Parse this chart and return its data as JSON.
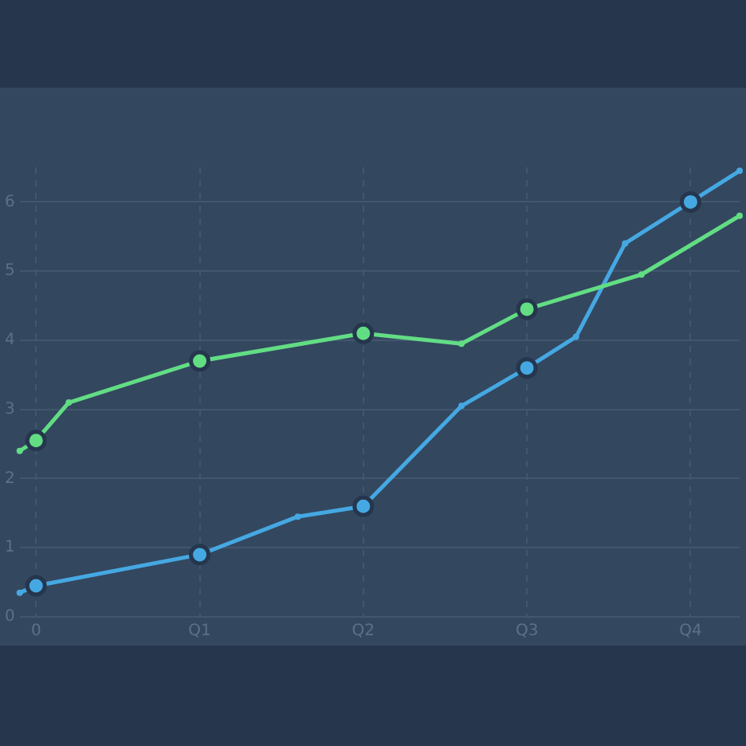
{
  "chart_data": {
    "type": "line",
    "categories": [
      null,
      "0",
      null,
      null,
      null,
      null,
      null,
      null,
      null,
      null,
      null,
      "Q1",
      null,
      null,
      null,
      null,
      null,
      null,
      null,
      null,
      null,
      "Q2",
      null,
      null,
      null,
      null,
      null,
      null,
      null,
      null,
      null,
      "Q3",
      null,
      null,
      null,
      null,
      null,
      null,
      null,
      null,
      null,
      "Q4",
      null,
      null,
      null
    ],
    "series": [
      {
        "color": "#62dd84",
        "values": [
          2.4,
          2.55,
          null,
          3.1,
          null,
          null,
          null,
          null,
          null,
          null,
          null,
          3.7,
          null,
          null,
          null,
          null,
          null,
          null,
          null,
          null,
          null,
          4.1,
          null,
          null,
          null,
          null,
          null,
          3.95,
          null,
          null,
          null,
          4.45,
          null,
          null,
          null,
          null,
          null,
          null,
          4.95,
          null,
          null,
          null,
          null,
          null,
          5.8
        ]
      },
      {
        "color": "#45a8e2",
        "values": [
          0.35,
          0.45,
          null,
          null,
          null,
          null,
          null,
          null,
          null,
          null,
          null,
          0.9,
          null,
          null,
          null,
          null,
          null,
          1.45,
          null,
          null,
          null,
          1.6,
          null,
          null,
          null,
          null,
          null,
          3.05,
          null,
          null,
          null,
          3.6,
          null,
          null,
          4.05,
          null,
          null,
          5.4,
          null,
          null,
          null,
          6,
          null,
          null,
          6.45
        ]
      }
    ],
    "ylim": [
      0,
      6.5
    ],
    "yticks": [
      0,
      1,
      2,
      3,
      4,
      5,
      6
    ],
    "grid": true,
    "marker": "circle",
    "line_style": "solid",
    "legend": false
  }
}
